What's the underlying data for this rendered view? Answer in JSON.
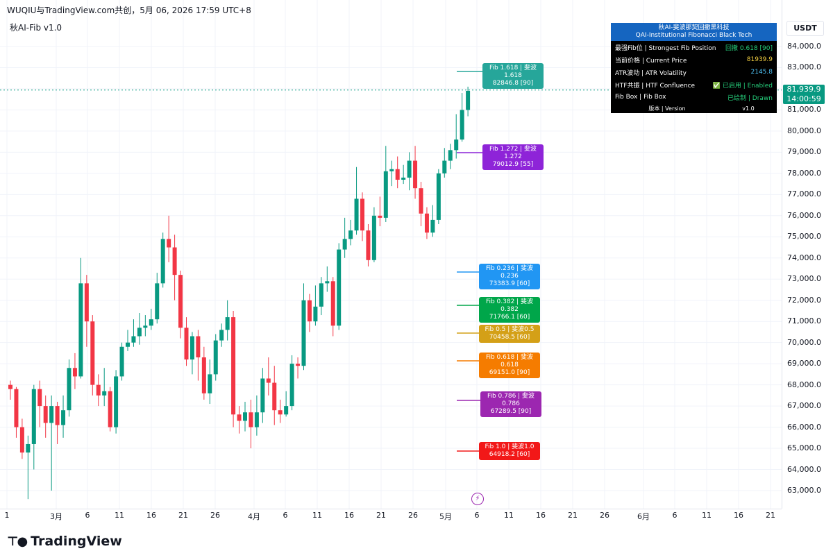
{
  "header": {
    "title": "WUQIU与TradingView.com共创，5月 06, 2026 17:59 UTC+8"
  },
  "indicator_name": "秋AI-Fib v1.0",
  "currency": "USDT",
  "price_axis": [
    "84,000.0",
    "83,000.0",
    "82,000.0",
    "81,000.0",
    "80,000.0",
    "79,000.0",
    "78,000.0",
    "77,000.0",
    "76,000.0",
    "75,000.0",
    "74,000.0",
    "73,000.0",
    "72,000.0",
    "71,000.0",
    "70,000.0",
    "69,000.0",
    "68,000.0",
    "67,000.0",
    "66,000.0",
    "65,000.0",
    "64,000.0",
    "63,000.0"
  ],
  "current_price": {
    "price": "81,939.9",
    "countdown": "14:00:59",
    "color": "#089981"
  },
  "time_axis": [
    "1",
    "3月",
    "6",
    "11",
    "16",
    "21",
    "26",
    "4月",
    "6",
    "11",
    "16",
    "21",
    "26",
    "5月",
    "6",
    "11",
    "16",
    "21",
    "26",
    "6月",
    "6",
    "11",
    "16",
    "21"
  ],
  "fib_labels": [
    {
      "line1": "Fib 1.618 | 斐波1.618",
      "line2": "82846.8 [90]",
      "color": "#26a69a"
    },
    {
      "line1": "Fib 1.272 | 斐波1.272",
      "line2": "79012.9 [55]",
      "color": "#8e24d8"
    },
    {
      "line1": "Fib 0.236 | 斐波0.236",
      "line2": "73383.9 [60]",
      "color": "#2196f3"
    },
    {
      "line1": "Fib 0.382 | 斐波0.382",
      "line2": "71766.1 [60]",
      "color": "#00a64a"
    },
    {
      "line1": "Fib 0.5 | 斐波0.5",
      "line2": "70458.5 [60]",
      "color": "#d4a017"
    },
    {
      "line1": "Fib 0.618 | 斐波0.618",
      "line2": "69151.0 [90]",
      "color": "#f57c00"
    },
    {
      "line1": "Fib 0.786 | 斐波0.786",
      "line2": "67289.5 [90]",
      "color": "#9c27b0"
    },
    {
      "line1": "Fib 1.0 | 斐波1.0",
      "line2": "64918.2 [60]",
      "color": "#f21818"
    }
  ],
  "info_table": {
    "title1": "秋AI-斐波那契回撤黑科技",
    "title2": "QAI-Institutional Fibonacci Black Tech",
    "rows": [
      {
        "label": "最强Fib位 | Strongest Fib Position",
        "value": "回撤 0.618 [90]",
        "color": "#26d07c"
      },
      {
        "label": "当前价格 | Current Price",
        "value": "81939.9",
        "color": "#f5d142"
      },
      {
        "label": "ATR波动 | ATR Volatility",
        "value": "2145.8",
        "color": "#4fc3f7"
      },
      {
        "label": "HTF共振 | HTF Confluence",
        "value": "✅ 已启用 | Enabled",
        "color": "#26d07c"
      },
      {
        "label": "Fib Box | Fib Box",
        "value": "已绘制 | Drawn",
        "color": "#26d07c"
      }
    ],
    "version_label": "版本 | Version",
    "version_value": "v1.0"
  },
  "logo_text": "TradingView",
  "candles": [
    [
      68000,
      67800,
      68200,
      67300
    ],
    [
      67800,
      66000,
      67900,
      65500
    ],
    [
      66000,
      64800,
      66400,
      64500
    ],
    [
      64800,
      65200,
      65600,
      62600
    ],
    [
      65200,
      67800,
      68000,
      64000
    ],
    [
      67800,
      67000,
      68200,
      66000
    ],
    [
      67000,
      66200,
      67500,
      65500
    ],
    [
      66200,
      67000,
      67500,
      63000
    ],
    [
      67000,
      66100,
      67200,
      65200
    ],
    [
      66100,
      66800,
      67500,
      65500
    ],
    [
      66800,
      68800,
      69200,
      66500
    ],
    [
      68800,
      68400,
      69500,
      67800
    ],
    [
      68400,
      72800,
      74000,
      68300
    ],
    [
      72800,
      71000,
      73200,
      69800
    ],
    [
      71000,
      68000,
      71300,
      67500
    ],
    [
      68000,
      67500,
      68500,
      67000
    ],
    [
      67500,
      67700,
      68800,
      67000
    ],
    [
      67700,
      66000,
      67900,
      65800
    ],
    [
      66000,
      68400,
      68700,
      65700
    ],
    [
      68400,
      69800,
      70000,
      68200
    ],
    [
      69800,
      70000,
      70600,
      69600
    ],
    [
      70000,
      70300,
      71100,
      69800
    ],
    [
      70300,
      70700,
      71400,
      69900
    ],
    [
      70700,
      70800,
      71300,
      70300
    ],
    [
      70800,
      71100,
      71600,
      70600
    ],
    [
      71100,
      72800,
      73300,
      70900
    ],
    [
      72800,
      74900,
      75200,
      72600
    ],
    [
      74900,
      74500,
      76000,
      73800
    ],
    [
      74500,
      73200,
      75100,
      72000
    ],
    [
      73200,
      70700,
      73400,
      70200
    ],
    [
      70700,
      69200,
      71200,
      68900
    ],
    [
      69200,
      70300,
      70500,
      68500
    ],
    [
      70300,
      69300,
      70600,
      68200
    ],
    [
      69300,
      67600,
      69800,
      67300
    ],
    [
      67600,
      68500,
      69200,
      67100
    ],
    [
      68500,
      70100,
      70400,
      68200
    ],
    [
      70100,
      70600,
      70900,
      69800
    ],
    [
      70600,
      71200,
      72000,
      70100
    ],
    [
      71200,
      66600,
      71500,
      66000
    ],
    [
      66600,
      66300,
      67000,
      65700
    ],
    [
      66300,
      66700,
      67200,
      65800
    ],
    [
      66700,
      66000,
      67300,
      65000
    ],
    [
      66000,
      66700,
      67500,
      65600
    ],
    [
      66700,
      68300,
      68800,
      66200
    ],
    [
      68300,
      68100,
      69300,
      67500
    ],
    [
      68100,
      66800,
      68900,
      66100
    ],
    [
      66800,
      66600,
      67300,
      66200
    ],
    [
      66600,
      67000,
      67700,
      66500
    ],
    [
      67000,
      69000,
      69400,
      66800
    ],
    [
      69000,
      68900,
      69300,
      68300
    ],
    [
      68900,
      72000,
      72800,
      68700
    ],
    [
      72000,
      71000,
      72300,
      70500
    ],
    [
      71000,
      71700,
      72700,
      70800
    ],
    [
      71700,
      72800,
      73100,
      71300
    ],
    [
      72800,
      72900,
      73600,
      72400
    ],
    [
      72900,
      70800,
      73100,
      70300
    ],
    [
      70800,
      74400,
      74700,
      70600
    ],
    [
      74400,
      74900,
      75900,
      74000
    ],
    [
      74900,
      75300,
      75800,
      74600
    ],
    [
      75300,
      76800,
      78300,
      75100
    ],
    [
      76800,
      75300,
      77100,
      74800
    ],
    [
      75300,
      73900,
      75600,
      73600
    ],
    [
      73900,
      76000,
      76400,
      73800
    ],
    [
      76000,
      75900,
      76900,
      75500
    ],
    [
      75900,
      78100,
      79300,
      75700
    ],
    [
      78100,
      78200,
      78600,
      77400
    ],
    [
      78200,
      77700,
      78800,
      77300
    ],
    [
      77700,
      77800,
      78400,
      77500
    ],
    [
      77800,
      78600,
      79000,
      77200
    ],
    [
      78600,
      77300,
      79300,
      76800
    ],
    [
      77300,
      76100,
      77600,
      75500
    ],
    [
      76100,
      75200,
      76400,
      74900
    ],
    [
      75200,
      75800,
      76500,
      75000
    ],
    [
      75800,
      78000,
      78200,
      75600
    ],
    [
      78000,
      78600,
      79200,
      77800
    ],
    [
      78600,
      79100,
      79400,
      78200
    ],
    [
      79100,
      79600,
      80800,
      78700
    ],
    [
      79600,
      81000,
      81800,
      79500
    ],
    [
      81000,
      81900,
      82100,
      80700
    ]
  ]
}
